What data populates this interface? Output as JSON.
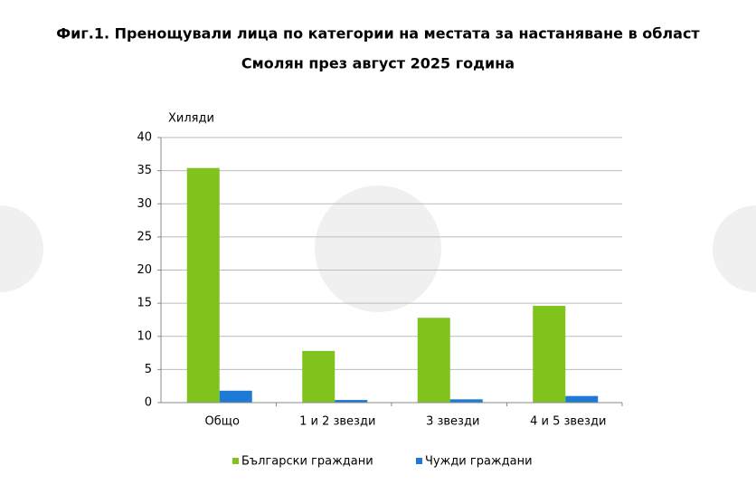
{
  "chart_data": {
    "type": "bar",
    "title": [
      "Фиг.1. Пренощували лица по категории на местата за настаняване в област",
      "Смолян през август 2025 година"
    ],
    "y_label": "Хиляди",
    "categories": [
      "Общо",
      "1 и 2 звезди",
      "3 звезди",
      "4 и 5 звезди"
    ],
    "series": [
      {
        "name": "Български граждани",
        "color": "#7fc31c",
        "values": [
          35.4,
          7.8,
          12.8,
          14.6
        ]
      },
      {
        "name": "Чужди граждани",
        "color": "#1f7ad6",
        "values": [
          1.8,
          0.4,
          0.5,
          1.0
        ]
      }
    ],
    "ylim": [
      0,
      40
    ],
    "yticks": [
      0,
      5,
      10,
      15,
      20,
      25,
      30,
      35,
      40
    ],
    "grid": true,
    "legend": "bottom"
  }
}
